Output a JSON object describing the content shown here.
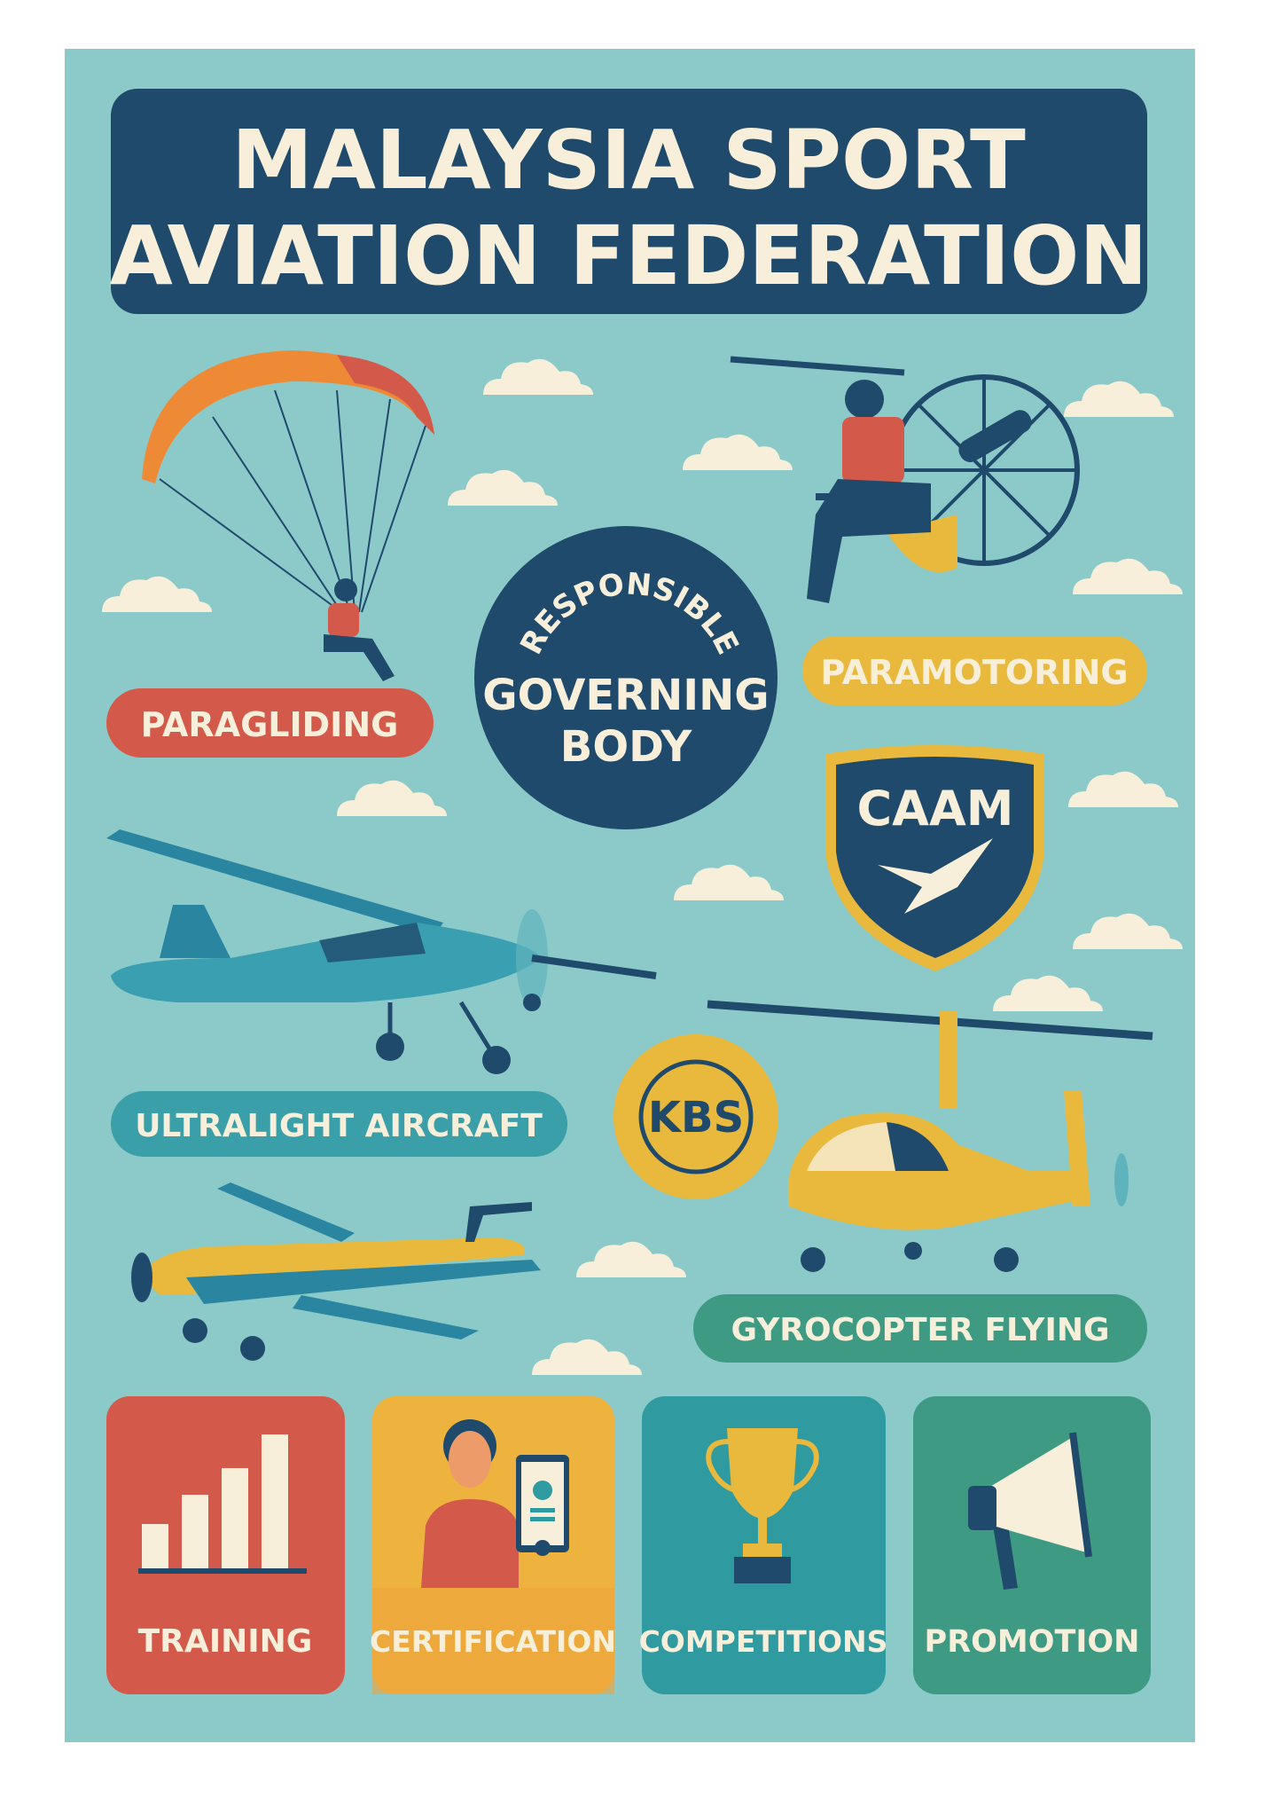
{
  "title": {
    "line1": "MALAYSIA SPORT",
    "line2": "AVIATION FEDERATION"
  },
  "badge": {
    "arc_text": "RESPONSIBLE",
    "line1": "GOVERNING",
    "line2": "BODY"
  },
  "activities": [
    {
      "label": "PARAGLIDING",
      "color": "#d35a4a",
      "icon": "paraglider-icon"
    },
    {
      "label": "PARAMOTORING",
      "color": "#e8b93c",
      "icon": "paramotor-icon"
    },
    {
      "label": "ULTRALIGHT AIRCRAFT",
      "color": "#3a9fa8",
      "icon": "ultralight-plane-icon"
    },
    {
      "label": "GYROCOPTER FLYING",
      "color": "#3e9a82",
      "icon": "gyrocopter-icon"
    }
  ],
  "logos": {
    "caam": "CAAM",
    "kbs": "KBS"
  },
  "functions": [
    {
      "label": "TRAINING",
      "color": "#d35a4a",
      "icon": "bar-chart-icon"
    },
    {
      "label": "CERTIFICATION",
      "color": "#eeb23e",
      "icon": "certificate-icon"
    },
    {
      "label": "COMPETITIONS",
      "color": "#2f9aa0",
      "icon": "trophy-icon"
    },
    {
      "label": "PROMOTION",
      "color": "#3e9a82",
      "icon": "megaphone-icon"
    }
  ],
  "colors": {
    "background": "#8ccaca",
    "navy": "#1f4a6b",
    "cream": "#f7efd9"
  }
}
